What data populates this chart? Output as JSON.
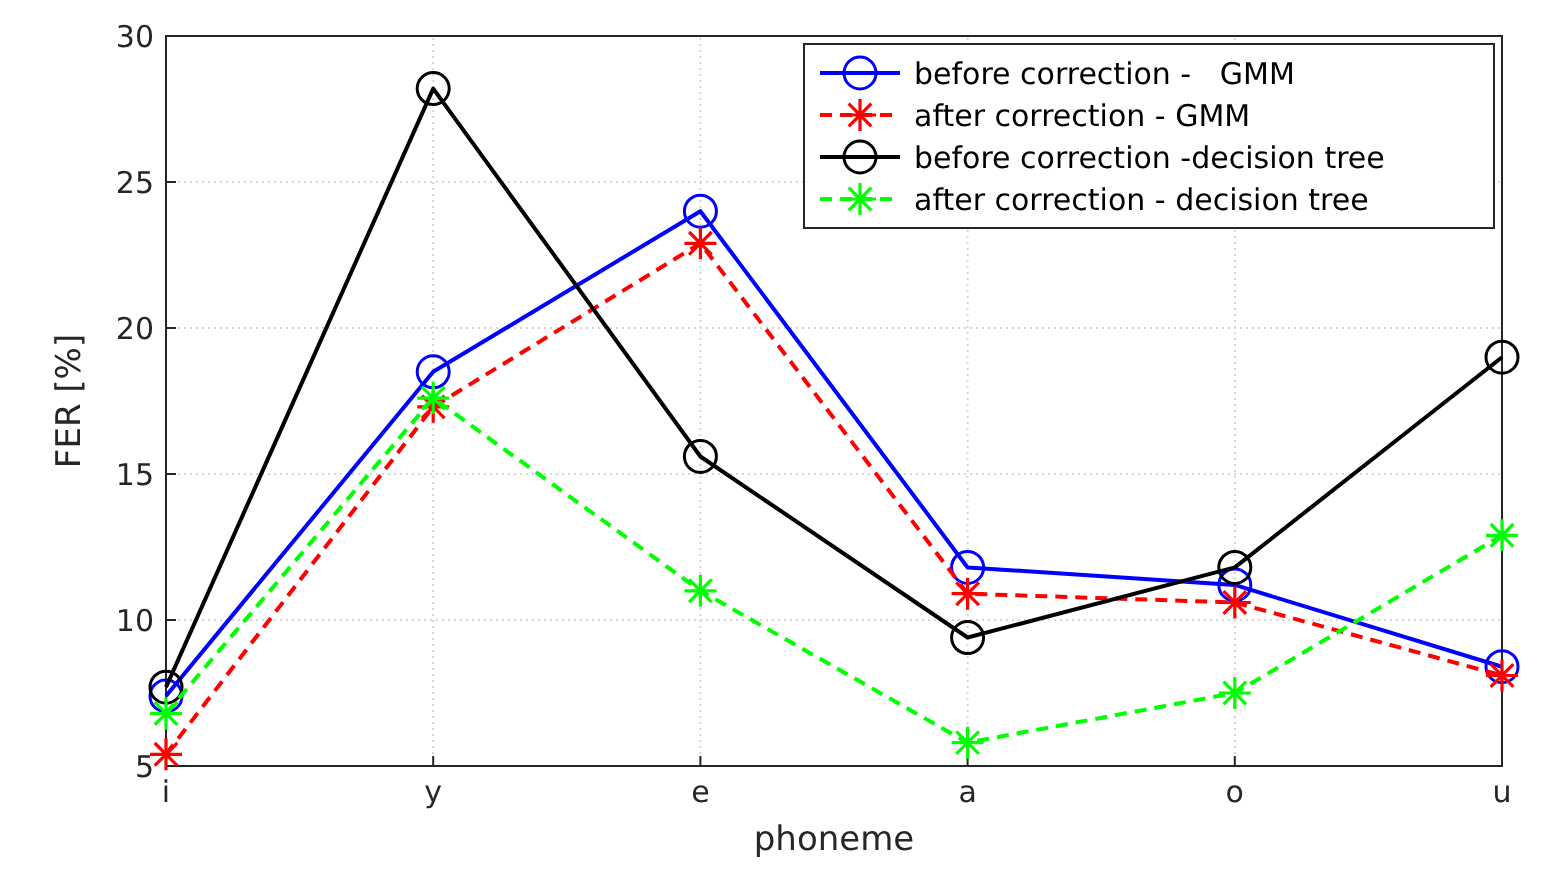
{
  "chart_data": {
    "type": "line",
    "xlabel": "phoneme",
    "ylabel": "FER [%]",
    "categories": [
      "i",
      "y",
      "e",
      "a",
      "o",
      "u"
    ],
    "ylim": [
      5,
      30
    ],
    "yticks": [
      5,
      10,
      15,
      20,
      25,
      30
    ],
    "grid": true,
    "legend": "top right",
    "series": [
      {
        "name": "before correction -   GMM",
        "color": "#0000ff",
        "marker": "circle",
        "line_style": "solid",
        "values": [
          7.4,
          18.5,
          24.0,
          11.8,
          11.2,
          8.4
        ]
      },
      {
        "name": "after correction - GMM",
        "color": "#ff0000",
        "marker": "star",
        "line_style": "dashed",
        "values": [
          5.4,
          17.3,
          22.9,
          10.9,
          10.6,
          8.1
        ]
      },
      {
        "name": "before correction -decision tree",
        "color": "#000000",
        "marker": "circle",
        "line_style": "solid",
        "values": [
          7.7,
          28.2,
          15.6,
          9.4,
          11.8,
          19.0
        ]
      },
      {
        "name": "after correction - decision tree",
        "color": "#00ff00",
        "marker": "star",
        "line_style": "dashed",
        "values": [
          6.8,
          17.6,
          11.0,
          5.8,
          7.5,
          12.9
        ]
      }
    ]
  }
}
